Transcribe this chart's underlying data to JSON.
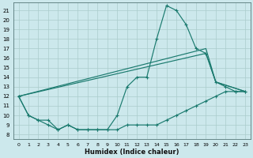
{
  "xlabel": "Humidex (Indice chaleur)",
  "xlim": [
    -0.5,
    23.5
  ],
  "ylim": [
    7.5,
    21.8
  ],
  "yticks": [
    8,
    9,
    10,
    11,
    12,
    13,
    14,
    15,
    16,
    17,
    18,
    19,
    20,
    21
  ],
  "xticks": [
    0,
    1,
    2,
    3,
    4,
    5,
    6,
    7,
    8,
    9,
    10,
    11,
    12,
    13,
    14,
    15,
    16,
    17,
    18,
    19,
    20,
    21,
    22,
    23
  ],
  "bg_color": "#cce8ec",
  "grid_color": "#aacccc",
  "line_color": "#1a7a6e",
  "series": [
    {
      "x": [
        0,
        1,
        2,
        3,
        4,
        5,
        6,
        7,
        8,
        9,
        10,
        11,
        12,
        13,
        14,
        15,
        16,
        17,
        18,
        19,
        20,
        21,
        22,
        23
      ],
      "y": [
        12,
        10,
        9.5,
        9.5,
        8.5,
        9,
        8.5,
        8.5,
        8.5,
        8.5,
        10,
        13,
        14,
        14,
        18,
        21.5,
        21,
        19.5,
        17,
        16.5,
        13.5,
        13,
        12.5,
        12.5
      ],
      "marker": true
    },
    {
      "x": [
        0,
        1,
        2,
        3,
        4,
        5,
        6,
        7,
        8,
        9,
        10,
        11,
        12,
        13,
        14,
        15,
        16,
        17,
        18,
        19,
        20,
        21,
        22,
        23
      ],
      "y": [
        12,
        10,
        9.5,
        9,
        8.5,
        9,
        8.5,
        8.5,
        8.5,
        8.5,
        8.5,
        9,
        9,
        9,
        9,
        9.5,
        10,
        10.5,
        11,
        11.5,
        12,
        12.5,
        12.5,
        12.5
      ],
      "marker": true
    },
    {
      "x": [
        0,
        19,
        20,
        23
      ],
      "y": [
        12,
        17,
        13.5,
        12.5
      ],
      "marker": false
    },
    {
      "x": [
        0,
        19,
        20,
        23
      ],
      "y": [
        12,
        16.5,
        13.5,
        12.5
      ],
      "marker": false
    }
  ]
}
